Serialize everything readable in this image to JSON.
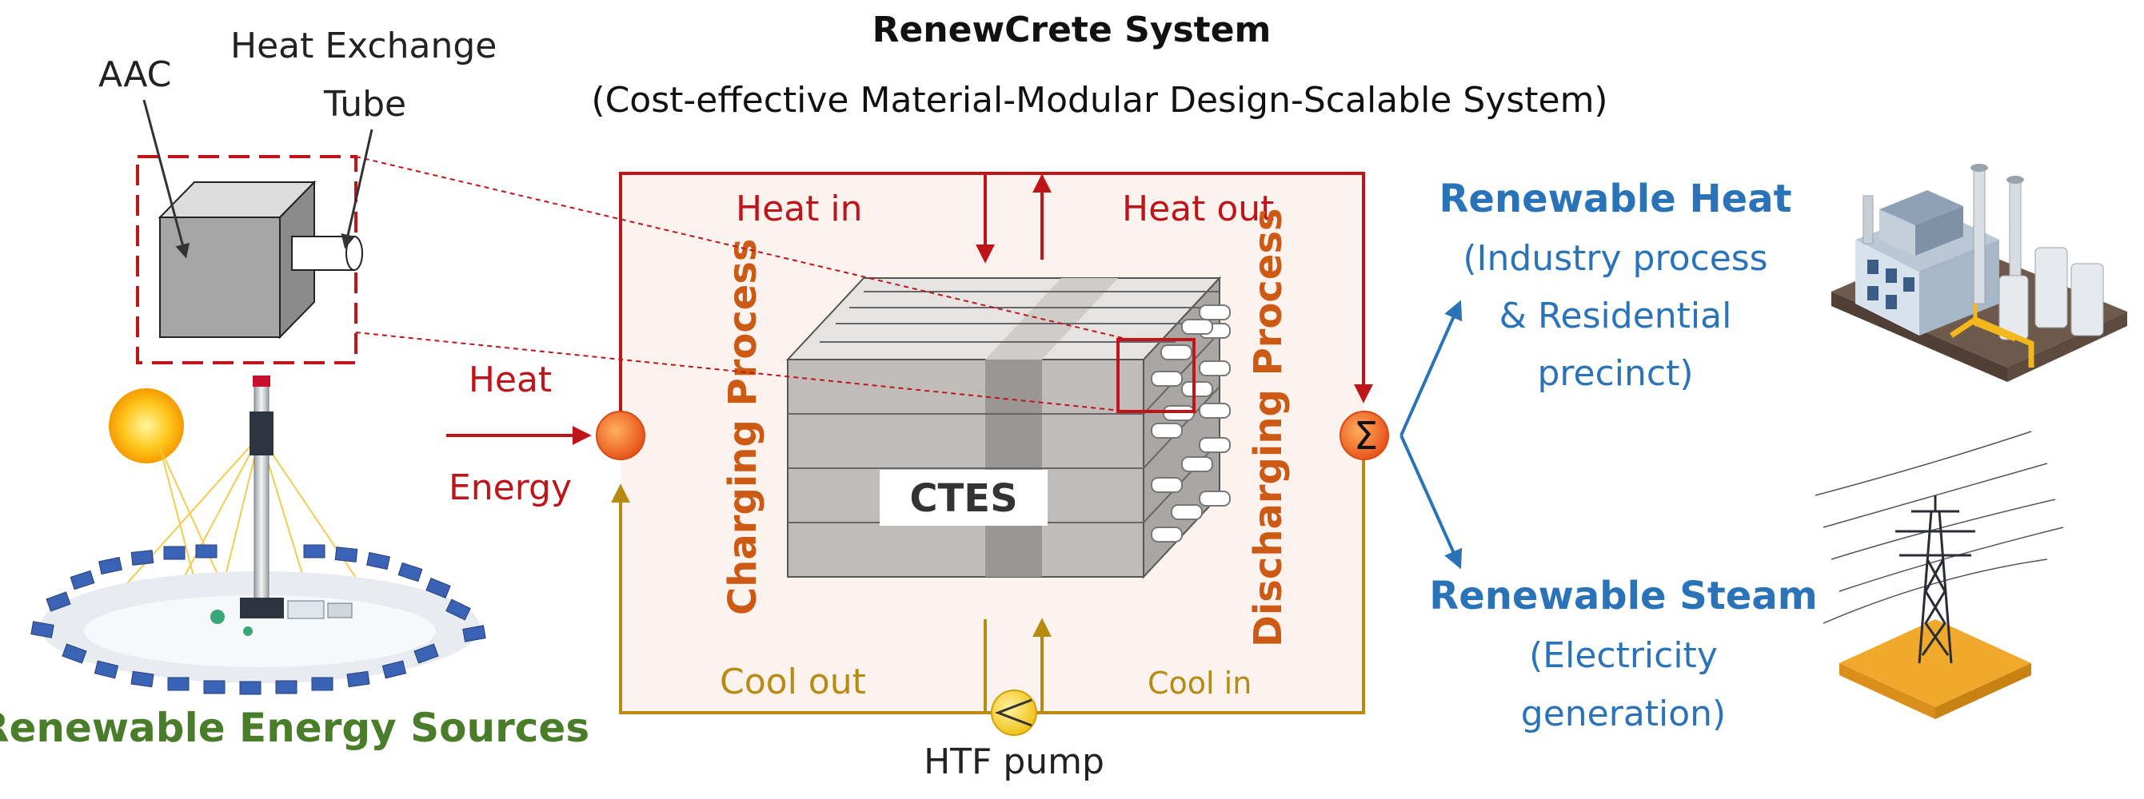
{
  "title": "RenewCrete System",
  "subtitle": "(Cost-effective Material-Modular Design-Scalable System)",
  "labels": {
    "aac": "AAC",
    "heat_exchange_line1": "Heat Exchange",
    "heat_exchange_line2": "Tube",
    "heat_in": "Heat in",
    "heat_out": "Heat out",
    "heat_energy_line1": "Heat",
    "heat_energy_line2": "Energy",
    "charging_process": "Charging Process",
    "discharging_process": "Discharging Process",
    "ctes": "CTES",
    "cool_out": "Cool out",
    "cool_in": "Cool in",
    "htf_pump": "HTF pump",
    "sigma": "Σ",
    "renewable_energy_sources": "Renewable Energy Sources",
    "renewable_heat": "Renewable Heat",
    "renewable_heat_desc_line1": "(Industry process",
    "renewable_heat_desc_line2": "& Residential",
    "renewable_heat_desc_line3": "precinct)",
    "renewable_steam": "Renewable Steam",
    "renewable_steam_desc_line1": "(Electricity",
    "renewable_steam_desc_line2": "generation)"
  },
  "icons": {
    "solar_plant": "solar-tower-plant-icon",
    "factory": "factory-icon",
    "power_tower": "power-transmission-tower-icon",
    "pump": "pump-icon",
    "heat_exchanger": "heat-exchanger-icon",
    "heater": "heater-icon"
  },
  "colors": {
    "heat_red": "#c0141b",
    "cool_gold": "#b88a12",
    "process_orange": "#cc5a15",
    "output_blue": "#2a73b8",
    "source_green": "#4a7d2a",
    "panel_fill": "#fcf3ef"
  }
}
